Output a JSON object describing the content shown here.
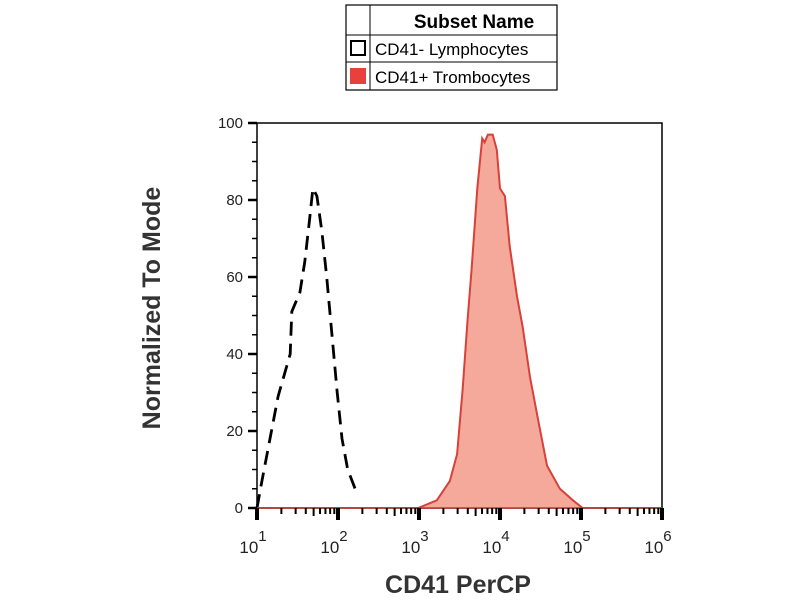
{
  "chart_data": {
    "type": "line",
    "title": "",
    "xlabel": "CD41 PerCP",
    "ylabel": "Normalized To Mode",
    "x_scale": "log10",
    "xlim_log10": [
      1,
      6
    ],
    "ylim": [
      0,
      100
    ],
    "x_tick_labels": [
      {
        "base": "10",
        "exp": "1"
      },
      {
        "base": "10",
        "exp": "2"
      },
      {
        "base": "10",
        "exp": "3"
      },
      {
        "base": "10",
        "exp": "4"
      },
      {
        "base": "10",
        "exp": "5"
      },
      {
        "base": "10",
        "exp": "6"
      }
    ],
    "y_ticks": [
      "0",
      "20",
      "40",
      "60",
      "80",
      "100"
    ],
    "legend": {
      "title": "Subset Name",
      "placement": "top-center",
      "entries": [
        "CD41- Lymphocytes",
        "CD41+ Trombocytes"
      ]
    },
    "series": [
      {
        "name": "CD41- Lymphocytes",
        "style": "dashed",
        "color": "#000000",
        "fill": "none",
        "x_log10": [
          1.0,
          1.06,
          1.16,
          1.26,
          1.41,
          1.43,
          1.53,
          1.59,
          1.65,
          1.69,
          1.74,
          1.8,
          1.86,
          1.93,
          1.99,
          2.05,
          2.12,
          2.23
        ],
        "y": [
          0,
          7,
          18,
          29,
          40,
          51,
          56,
          64,
          75,
          83,
          81,
          72,
          60,
          44,
          30,
          18,
          10,
          4
        ]
      },
      {
        "name": "CD41+ Trombocytes",
        "style": "solid",
        "color": "#d9403a",
        "fill": "#f4a99a",
        "x_log10": [
          2.99,
          3.22,
          3.38,
          3.47,
          3.54,
          3.6,
          3.65,
          3.72,
          3.78,
          3.81,
          3.85,
          3.91,
          3.96,
          4.0,
          4.06,
          4.12,
          4.21,
          4.28,
          4.37,
          4.46,
          4.58,
          4.74,
          4.9,
          5.02
        ],
        "y": [
          0,
          2,
          7,
          14,
          31,
          49,
          62,
          83,
          96,
          95,
          97,
          97,
          93,
          83,
          81,
          68,
          55,
          47,
          34,
          24,
          11,
          5,
          2,
          0
        ]
      }
    ]
  }
}
